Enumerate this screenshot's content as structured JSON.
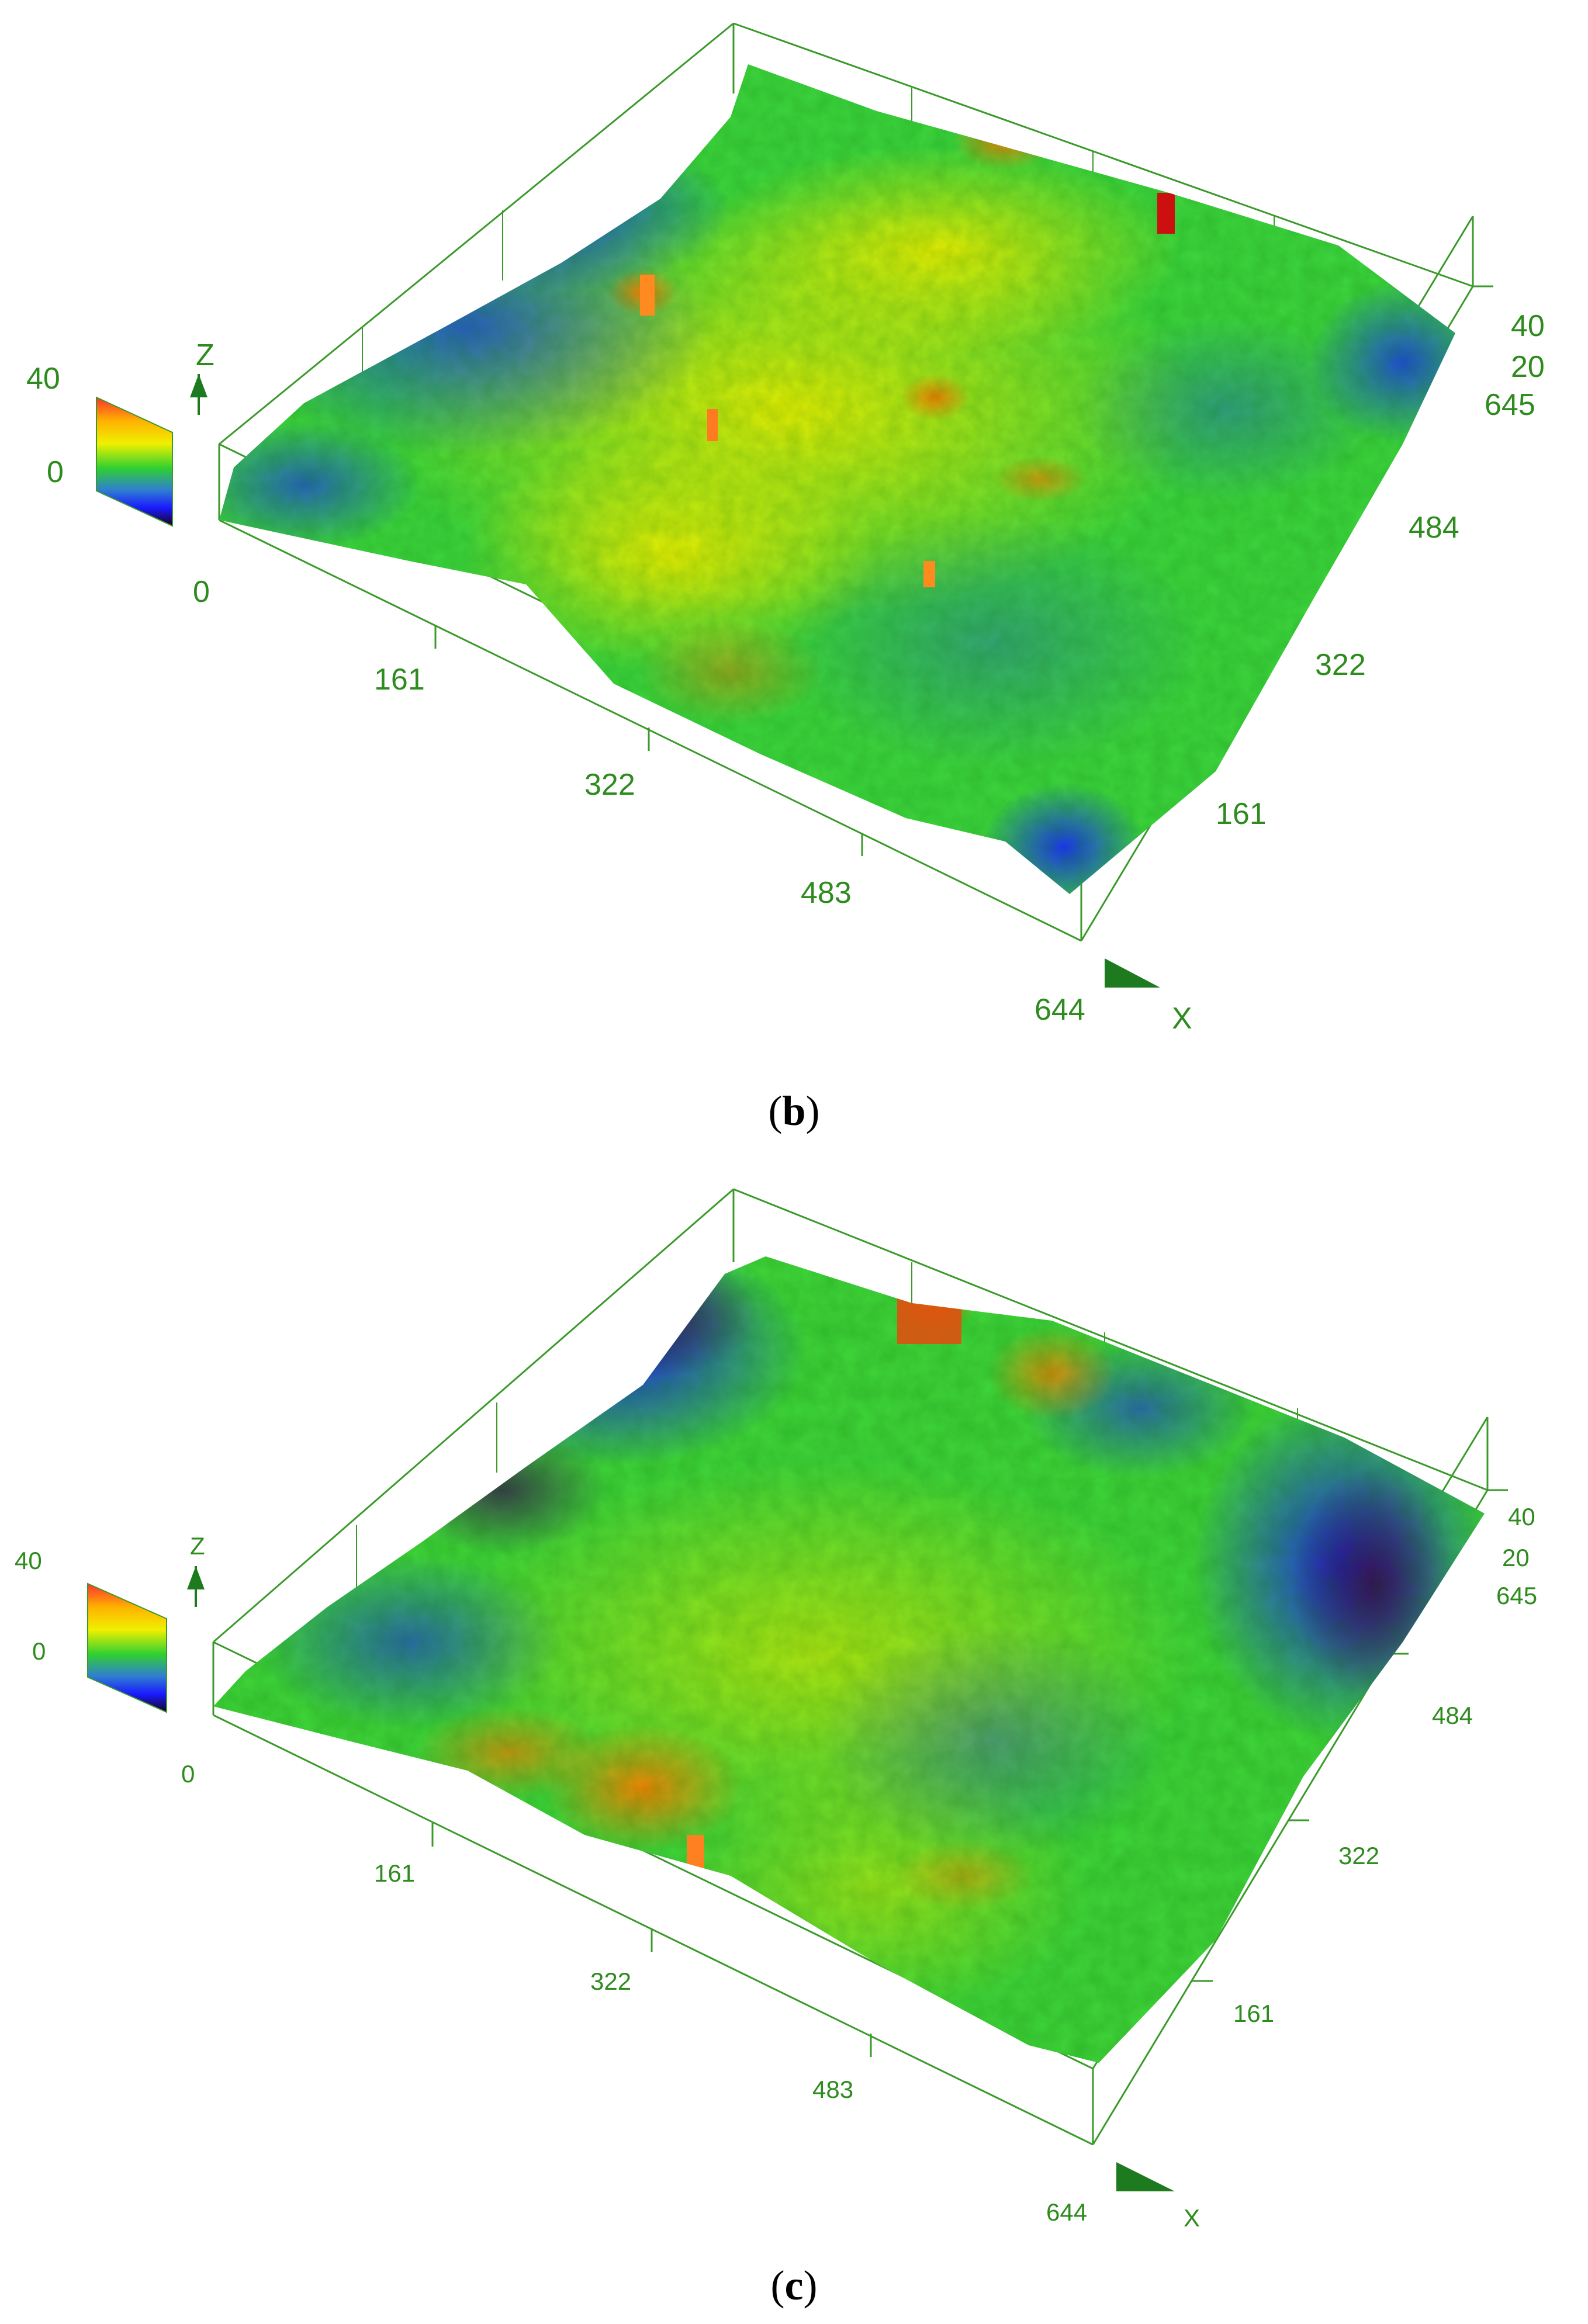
{
  "panels": [
    {
      "id": "b",
      "caption_letter": "b",
      "axis_x_label": "X",
      "axis_z_label": "Z",
      "x_ticks": [
        "0",
        "161",
        "322",
        "483",
        "644"
      ],
      "y_ticks": [
        "161",
        "322",
        "484",
        "645"
      ],
      "z_ticks": [
        "20",
        "40"
      ],
      "colorbar_ticks": [
        "40",
        "0"
      ],
      "surface_colors": [
        "#1a1aff",
        "#2f7fd0",
        "#33d633",
        "#7df21a",
        "#e6f000",
        "#ffb400",
        "#ff5a00",
        "#d01010"
      ]
    },
    {
      "id": "c",
      "caption_letter": "c",
      "axis_x_label": "X",
      "axis_z_label": "Z",
      "x_ticks": [
        "0",
        "161",
        "322",
        "483",
        "644"
      ],
      "y_ticks": [
        "161",
        "322",
        "484",
        "645"
      ],
      "z_ticks": [
        "20",
        "40"
      ],
      "colorbar_ticks": [
        "40",
        "0"
      ],
      "surface_colors": [
        "#3a0a5a",
        "#1a1aff",
        "#2f7fd0",
        "#33d633",
        "#7df21a",
        "#e6f000",
        "#ff9a00",
        "#e03a10"
      ]
    }
  ],
  "caption_open": "(",
  "caption_close": ")"
}
